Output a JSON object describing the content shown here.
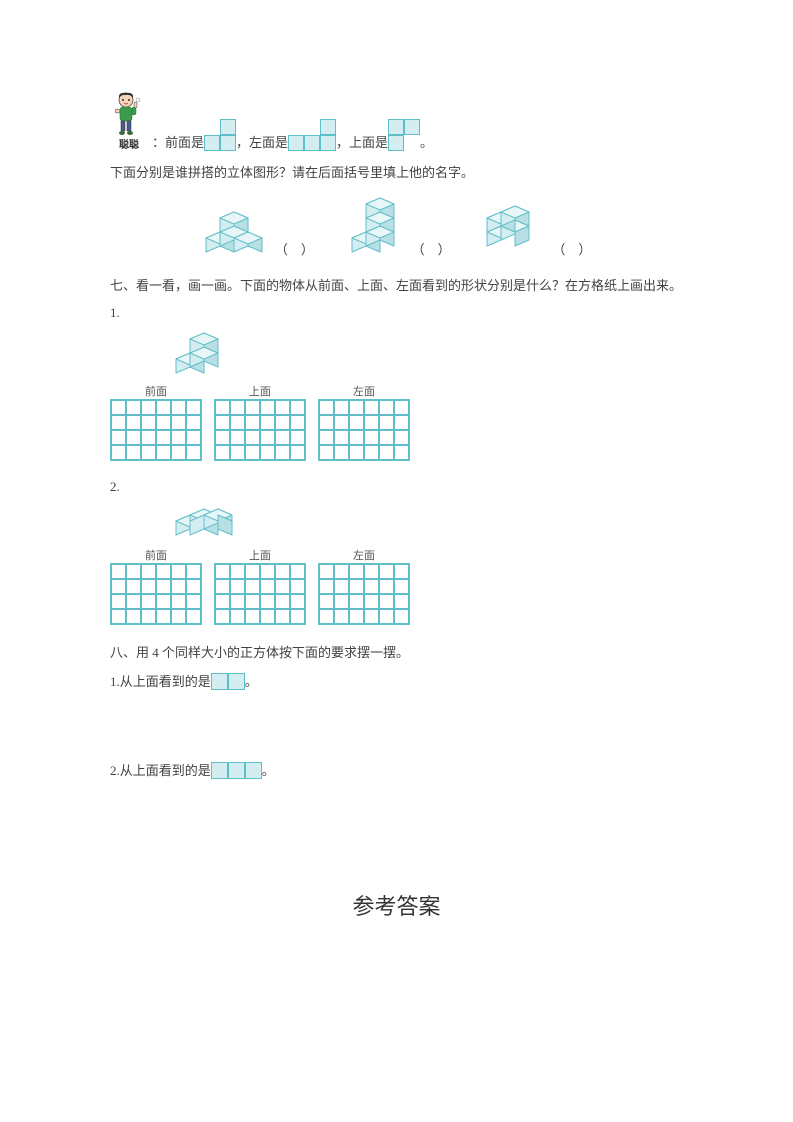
{
  "colors": {
    "cube_fill": "#d4edf0",
    "cube_stroke": "#5fbfc9",
    "cube_top": "#e8f6f7",
    "cube_side": "#b8dfe3",
    "text": "#424242",
    "grid_line": "#5fbfc9"
  },
  "cell_size": 15,
  "top_row": {
    "char_label": "聪聪",
    "front": "：前面是",
    "left": "，左面是",
    "top": "，上面是",
    "period": "。",
    "shape_front": {
      "rows": 2,
      "cols": 2,
      "cells": [
        [
          0,
          1
        ],
        [
          1,
          1
        ]
      ],
      "cell": 16
    },
    "shape_left": {
      "rows": 2,
      "cols": 3,
      "cells": [
        [
          0,
          0,
          1
        ],
        [
          1,
          1,
          1
        ]
      ],
      "cell": 16
    },
    "shape_top": {
      "rows": 2,
      "cols": 2,
      "cells": [
        [
          1,
          1
        ],
        [
          1,
          0
        ]
      ],
      "cell": 16
    }
  },
  "q6": {
    "text": "下面分别是谁拼搭的立体图形？请在后面括号里填上他的名字。",
    "paren": "（　）"
  },
  "q7": {
    "title": "七、看一看，画一画。下面的物体从前面、上面、左面看到的形状分别是什么？在方格纸上画出来。",
    "item1": "1.",
    "item2": "2.",
    "labels": [
      "前面",
      "上面",
      "左面"
    ],
    "grid": {
      "rows": 4,
      "cols": 6,
      "cell": 15
    }
  },
  "q8": {
    "title": "八、用 4 个同样大小的正方体按下面的要求摆一摆。",
    "item1_pre": "1.从上面看到的是",
    "item1_shape": {
      "rows": 1,
      "cols": 2,
      "cells": [
        [
          1,
          1
        ]
      ],
      "cell": 17
    },
    "item2_pre": "2.从上面看到的是",
    "item2_shape": {
      "rows": 1,
      "cols": 3,
      "cells": [
        [
          1,
          1,
          1
        ]
      ],
      "cell": 17
    },
    "period": "。"
  },
  "answer_title": "参考答案"
}
